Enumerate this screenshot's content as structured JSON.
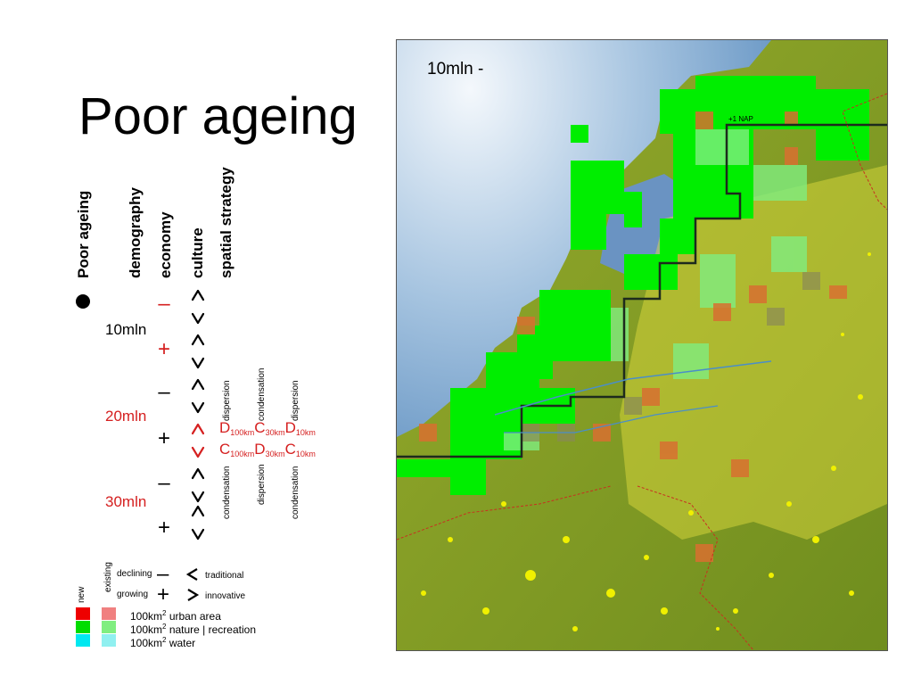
{
  "slide": {
    "title": "Poor ageing"
  },
  "axes_labels": {
    "poor_ageing": "Poor ageing",
    "demography": "demography",
    "economy": "economy",
    "culture": "culture",
    "spatial_strategy": "spatial strategy"
  },
  "demography_levels": [
    "10mln",
    "20mln",
    "30mln"
  ],
  "strategies": {
    "top_words": [
      "dispersion",
      "condensation",
      "dispersion"
    ],
    "row1": [
      {
        "letter": "D",
        "sub": "100km"
      },
      {
        "letter": "C",
        "sub": "30km"
      },
      {
        "letter": "D",
        "sub": "10km"
      }
    ],
    "row2": [
      {
        "letter": "C",
        "sub": "100km"
      },
      {
        "letter": "D",
        "sub": "30km"
      },
      {
        "letter": "C",
        "sub": "10km"
      }
    ],
    "bottom_words": [
      "condensation",
      "dispersion",
      "condensation"
    ]
  },
  "legend": {
    "new": "new",
    "existing": "existing",
    "declining": "declining",
    "growing": "growing",
    "traditional": "traditional",
    "innovative": "innovative",
    "urban_prefix": "100km",
    "urban_sup": "2",
    "urban_label": " urban area",
    "nature_prefix": "100km",
    "nature_sup": "2",
    "nature_label": " nature | recreation",
    "water_prefix": "100km",
    "water_sup": "2",
    "water_label": " water",
    "colors": {
      "new_urban": "#ee0000",
      "existing_urban": "#f08080",
      "new_nature": "#00dd00",
      "existing_nature": "#80ee80",
      "new_water": "#00e8f0",
      "existing_water": "#90f0f0"
    }
  },
  "map": {
    "caption": "10mln -",
    "nap_label": "+1 NAP",
    "colors": {
      "sea": "#6f9cc8",
      "land": "#8aa024",
      "nature": "#00ee00",
      "urban_cell": "#d87030",
      "yellow_overlay": "#e6e040",
      "urban_dots": "#f0f000"
    }
  }
}
